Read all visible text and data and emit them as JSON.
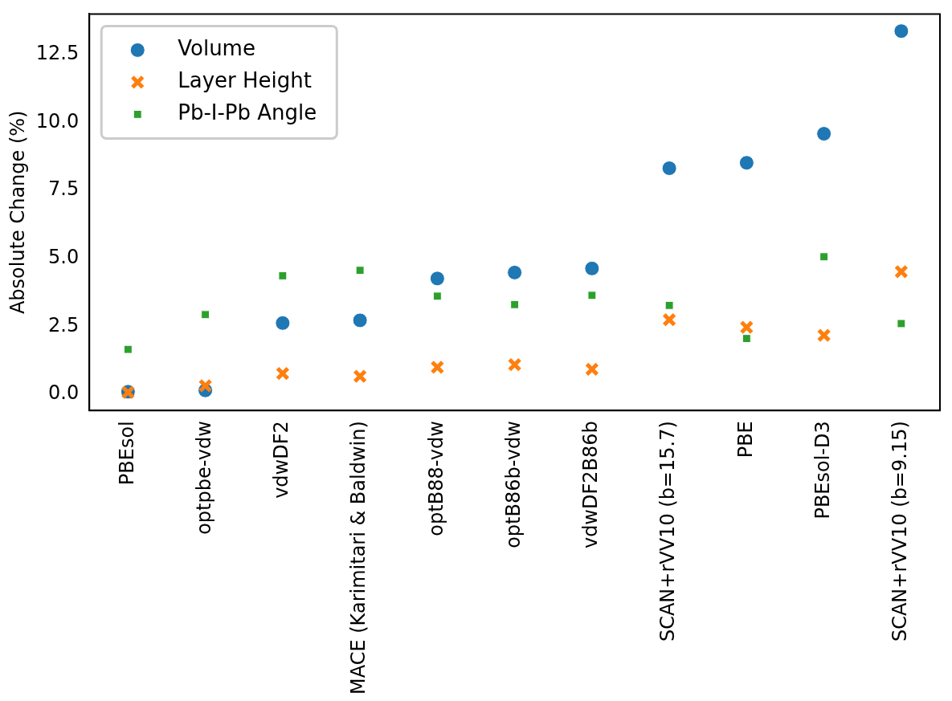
{
  "chart_data": {
    "type": "scatter",
    "ylabel": "Absolute Change (%)",
    "categories": [
      "PBEsol",
      "optpbe-vdw",
      "vdwDF2",
      "MACE (Karimitari & Baldwin)",
      "optB88-vdw",
      "optB86b-vdw",
      "vdwDF2B86b",
      "SCAN+rVV10 (b=15.7)",
      "PBE",
      "PBEsol-D3",
      "SCAN+rVV10 (b=9.15)"
    ],
    "series": [
      {
        "name": "Volume",
        "color": "#1f77b4",
        "marker": "circle",
        "values": [
          0.09,
          0.14,
          2.62,
          2.72,
          4.26,
          4.48,
          4.63,
          8.32,
          8.52,
          9.59,
          13.37
        ]
      },
      {
        "name": "Layer Height",
        "color": "#ff7f0e",
        "marker": "cross",
        "values": [
          0.07,
          0.31,
          0.76,
          0.66,
          0.99,
          1.09,
          0.92,
          2.74,
          2.46,
          2.17,
          4.51
        ]
      },
      {
        "name": "Pb-I-Pb Angle",
        "color": "#2ca02c",
        "marker": "square",
        "values": [
          1.65,
          2.93,
          4.36,
          4.56,
          3.61,
          3.3,
          3.64,
          3.27,
          2.05,
          5.06,
          2.6
        ]
      }
    ],
    "ylim": [
      -0.6,
      14.0
    ],
    "yticks": [
      {
        "value": 0,
        "label": "0.0"
      },
      {
        "value": 2.5,
        "label": "2.5"
      },
      {
        "value": 5,
        "label": "5.0"
      },
      {
        "value": 7.5,
        "label": "7.5"
      },
      {
        "value": 10,
        "label": "10.0"
      },
      {
        "value": 12.5,
        "label": "12.5"
      }
    ],
    "grid": false,
    "legend": "top left"
  }
}
